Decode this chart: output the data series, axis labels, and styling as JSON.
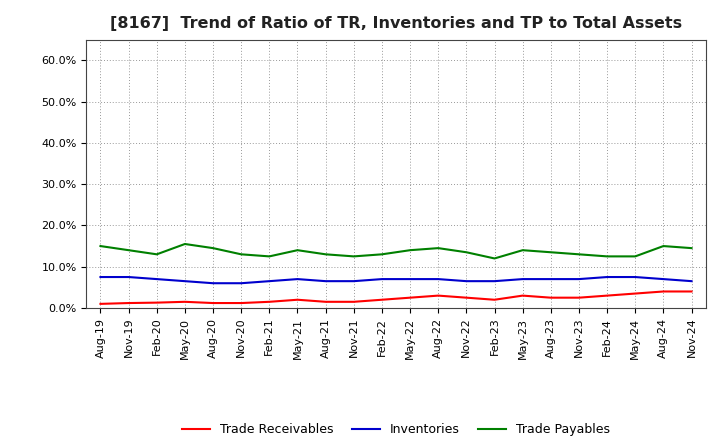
{
  "title": "[8167]  Trend of Ratio of TR, Inventories and TP to Total Assets",
  "x_labels": [
    "Aug-19",
    "Nov-19",
    "Feb-20",
    "May-20",
    "Aug-20",
    "Nov-20",
    "Feb-21",
    "May-21",
    "Aug-21",
    "Nov-21",
    "Feb-22",
    "May-22",
    "Aug-22",
    "Nov-22",
    "Feb-23",
    "May-23",
    "Aug-23",
    "Nov-23",
    "Feb-24",
    "May-24",
    "Aug-24",
    "Nov-24"
  ],
  "trade_receivables": [
    1.0,
    1.2,
    1.3,
    1.5,
    1.2,
    1.2,
    1.5,
    2.0,
    1.5,
    1.5,
    2.0,
    2.5,
    3.0,
    2.5,
    2.0,
    3.0,
    2.5,
    2.5,
    3.0,
    3.5,
    4.0,
    4.0
  ],
  "inventories": [
    7.5,
    7.5,
    7.0,
    6.5,
    6.0,
    6.0,
    6.5,
    7.0,
    6.5,
    6.5,
    7.0,
    7.0,
    7.0,
    6.5,
    6.5,
    7.0,
    7.0,
    7.0,
    7.5,
    7.5,
    7.0,
    6.5
  ],
  "trade_payables": [
    15.0,
    14.0,
    13.0,
    15.5,
    14.5,
    13.0,
    12.5,
    14.0,
    13.0,
    12.5,
    13.0,
    14.0,
    14.5,
    13.5,
    12.0,
    14.0,
    13.5,
    13.0,
    12.5,
    12.5,
    15.0,
    14.5
  ],
  "tr_color": "#ff0000",
  "inv_color": "#0000cd",
  "tp_color": "#008000",
  "background_color": "#ffffff",
  "grid_color": "#999999",
  "ylim": [
    0,
    65
  ],
  "yticks": [
    0,
    10,
    20,
    30,
    40,
    50,
    60
  ],
  "ytick_labels": [
    "0.0%",
    "10.0%",
    "20.0%",
    "30.0%",
    "40.0%",
    "50.0%",
    "60.0%"
  ],
  "legend_labels": [
    "Trade Receivables",
    "Inventories",
    "Trade Payables"
  ],
  "title_fontsize": 11.5,
  "tick_fontsize": 8,
  "legend_fontsize": 9,
  "line_width": 1.5
}
